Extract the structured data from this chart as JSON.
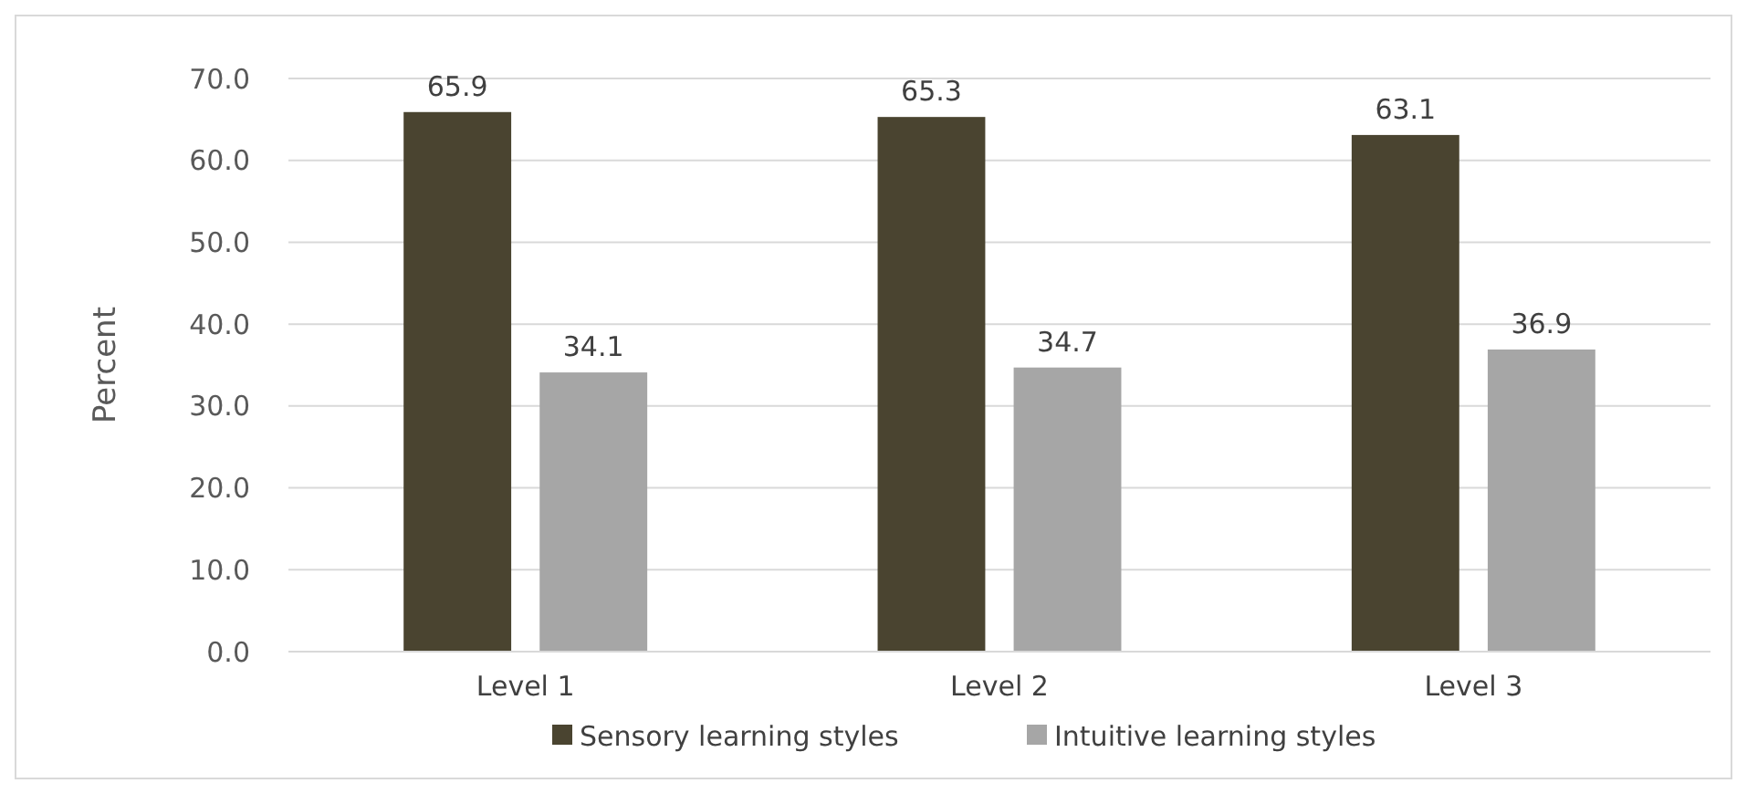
{
  "chart_data": {
    "type": "bar",
    "ylabel": "Percent",
    "categories": [
      "Level 1",
      "Level 2",
      "Level 3"
    ],
    "series": [
      {
        "name": "Sensory learning styles",
        "color": "#4a4430",
        "values": [
          65.9,
          65.3,
          63.1
        ]
      },
      {
        "name": "Intuitive learning styles",
        "color": "#a6a6a6",
        "values": [
          34.1,
          34.7,
          36.9
        ]
      }
    ],
    "ylim": [
      0,
      70
    ],
    "yticks": [
      {
        "value": 0,
        "label": "0.0"
      },
      {
        "value": 10,
        "label": "10.0"
      },
      {
        "value": 20,
        "label": "20.0"
      },
      {
        "value": 30,
        "label": "30.0"
      },
      {
        "value": 40,
        "label": "40.0"
      },
      {
        "value": 50,
        "label": "50.0"
      },
      {
        "value": 60,
        "label": "60.0"
      },
      {
        "value": 70,
        "label": "70.0"
      }
    ],
    "grid": "y",
    "legend": "bottom",
    "data_labels": true
  }
}
